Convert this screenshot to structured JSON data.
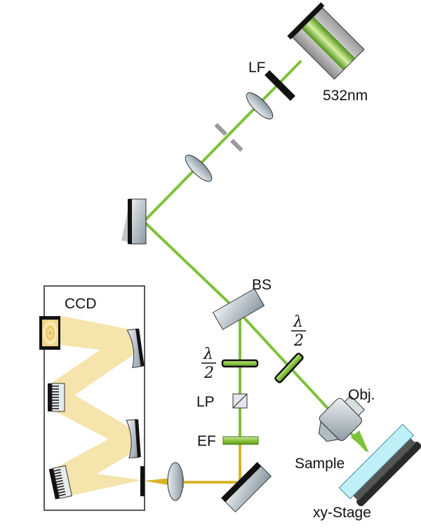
{
  "labels": {
    "laser_wavelength": "532nm",
    "laser_filter": "LF",
    "beam_splitter": "BS",
    "ccd": "CCD",
    "halfwave_1": {
      "numerator": "λ",
      "denominator": "2"
    },
    "halfwave_2": {
      "numerator": "λ",
      "denominator": "2"
    },
    "linear_polarizer": "LP",
    "edge_filter": "EF",
    "objective": "Obj.",
    "sample": "Sample",
    "stage": "xy-Stage"
  },
  "colors": {
    "laser_beam": "#7ec13a",
    "signal_beam": "#d9b42a",
    "spectrometer_light": "#f5e2a3",
    "sample_glass": "#bfeff7",
    "filter_green": "#8bc53f"
  }
}
